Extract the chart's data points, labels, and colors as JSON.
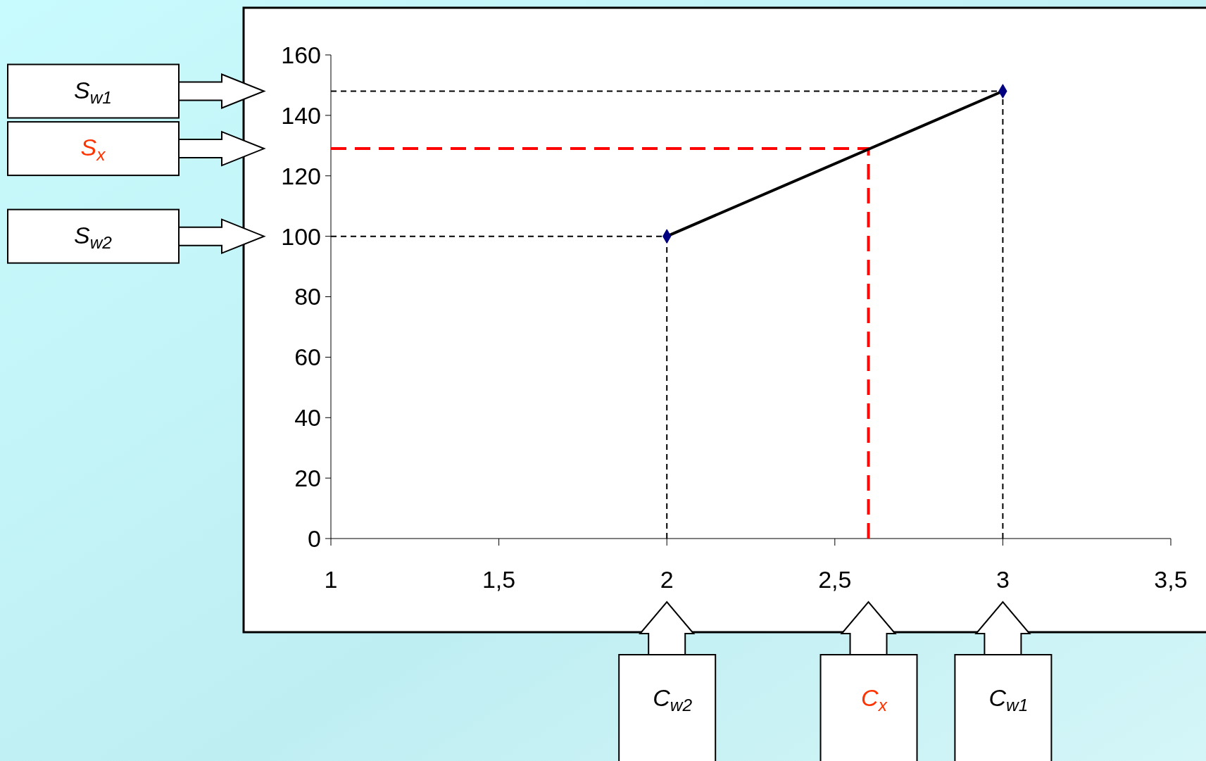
{
  "chart_data": {
    "type": "line",
    "x": [
      2,
      3
    ],
    "series": [
      {
        "color": "#000000",
        "values": [
          100,
          148
        ]
      }
    ],
    "marker": "diamond",
    "xlim": [
      1,
      3.5
    ],
    "ylim": [
      0,
      160
    ],
    "xticks": [
      1,
      {
        "value": 1.5,
        "label": "1,5"
      },
      2,
      {
        "value": 2.5,
        "label": "2,5"
      },
      3,
      {
        "value": 3.5,
        "label": "3,5"
      }
    ],
    "yticks": [
      0,
      20,
      40,
      60,
      80,
      100,
      120,
      140,
      160
    ],
    "grid": false,
    "ref_lines": [
      {
        "axis": "y",
        "value": 148,
        "color": "#000000",
        "line_style": "dashed"
      },
      {
        "axis": "y",
        "value": 129,
        "color": "#ff0000",
        "line_style": "dashed"
      },
      {
        "axis": "y",
        "value": 100,
        "color": "#000000",
        "line_style": "dashed"
      },
      {
        "axis": "x",
        "value": 2,
        "color": "#000000",
        "line_style": "dashed"
      },
      {
        "axis": "x",
        "value": 2.6,
        "color": "#ff0000",
        "line_style": "dashed"
      },
      {
        "axis": "x",
        "value": 3,
        "color": "#000000",
        "line_style": "dashed"
      }
    ],
    "annotations": [
      "S$_{w1}$",
      "S$_{x}$",
      "S$_{w2}$",
      "C$_{w2}$",
      "C$_{x}$",
      "C$_{w1}$"
    ]
  }
}
